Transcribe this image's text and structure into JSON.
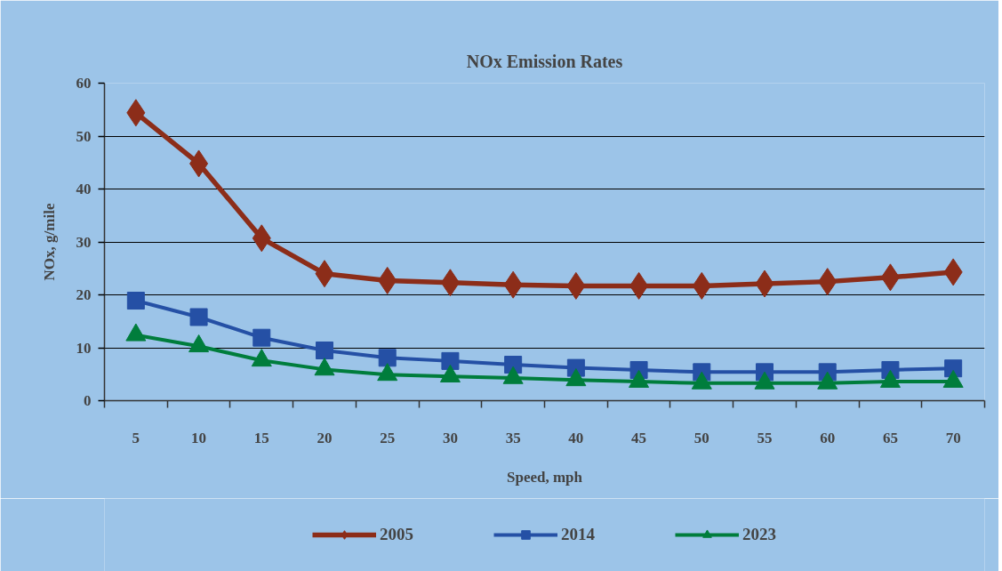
{
  "chart_data": {
    "type": "line",
    "title": "NOx Emission Rates",
    "xlabel": "Speed, mph",
    "ylabel": "NOx, g/mile",
    "categories": [
      "5",
      "10",
      "15",
      "20",
      "25",
      "30",
      "35",
      "40",
      "45",
      "50",
      "55",
      "60",
      "65",
      "70"
    ],
    "ylim": [
      0,
      60
    ],
    "yticks": [
      0,
      10,
      20,
      30,
      40,
      50,
      60
    ],
    "grid": "y",
    "legend": "bottom",
    "line_style": "solid",
    "series": [
      {
        "name": "2005",
        "color": "#8c2d19",
        "marker": "diamond",
        "values": [
          54.4,
          44.8,
          30.7,
          24.0,
          22.7,
          22.3,
          21.9,
          21.7,
          21.7,
          21.7,
          22.1,
          22.5,
          23.3,
          24.3
        ]
      },
      {
        "name": "2014",
        "color": "#2550a5",
        "marker": "square",
        "values": [
          18.9,
          15.8,
          11.9,
          9.5,
          8.1,
          7.5,
          6.8,
          6.2,
          5.8,
          5.4,
          5.4,
          5.4,
          5.8,
          6.1
        ]
      },
      {
        "name": "2023",
        "color": "#007d3c",
        "marker": "triangle",
        "values": [
          12.4,
          10.3,
          7.6,
          5.9,
          4.9,
          4.6,
          4.3,
          3.9,
          3.6,
          3.3,
          3.3,
          3.3,
          3.6,
          3.6
        ]
      }
    ]
  }
}
